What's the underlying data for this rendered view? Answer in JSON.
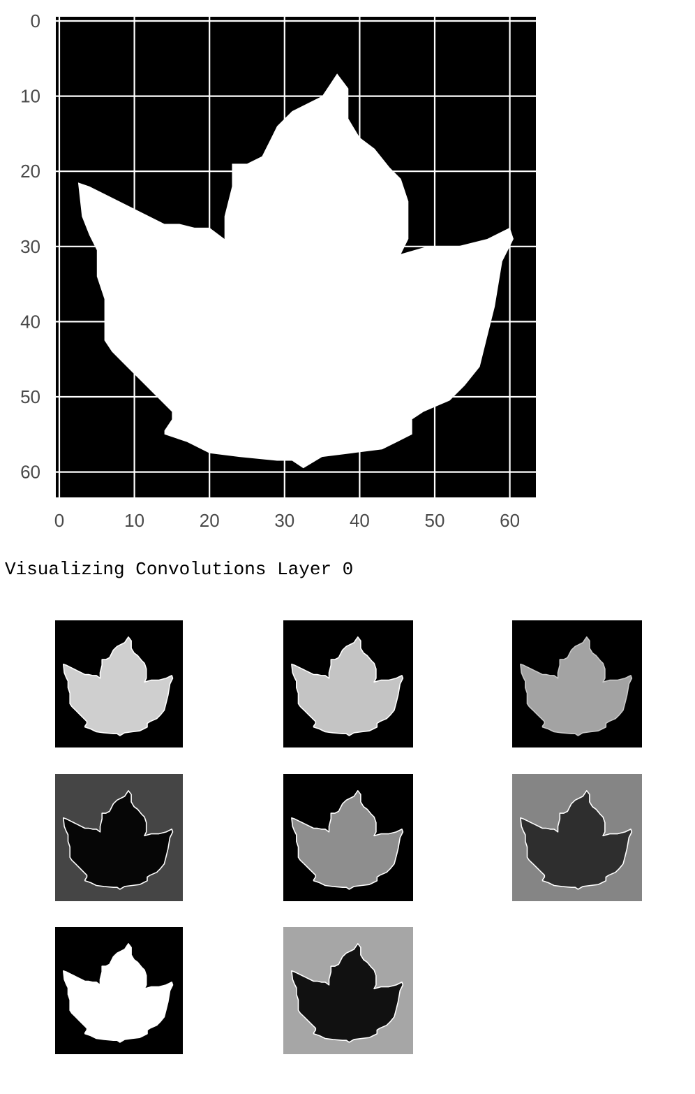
{
  "caption": "Visualizing Convolutions Layer 0",
  "chart_data": {
    "type": "heatmap",
    "title": "",
    "xlabel": "",
    "ylabel": "",
    "xlim": [
      0,
      63
    ],
    "ylim": [
      63,
      0
    ],
    "xticks": [
      "0",
      "10",
      "20",
      "30",
      "40",
      "50",
      "60"
    ],
    "yticks": [
      "0",
      "10",
      "20",
      "30",
      "40",
      "50",
      "60"
    ],
    "grid": true,
    "colormap": "gray",
    "background_value": 0,
    "leaf_value": 1,
    "leaf_outline": [
      [
        37,
        7
      ],
      [
        38.5,
        9
      ],
      [
        38.5,
        13
      ],
      [
        40,
        15.5
      ],
      [
        42,
        17
      ],
      [
        44,
        19.5
      ],
      [
        45.5,
        21
      ],
      [
        46.5,
        24
      ],
      [
        46.5,
        29
      ],
      [
        45.5,
        31
      ],
      [
        49,
        30
      ],
      [
        53,
        30
      ],
      [
        57,
        29
      ],
      [
        60,
        27.5
      ],
      [
        60.5,
        29
      ],
      [
        59,
        32
      ],
      [
        58,
        38
      ],
      [
        57,
        42
      ],
      [
        56,
        46
      ],
      [
        54,
        48.5
      ],
      [
        52,
        50.5
      ],
      [
        48.5,
        52
      ],
      [
        47,
        53
      ],
      [
        47,
        55
      ],
      [
        45,
        56
      ],
      [
        43,
        57
      ],
      [
        39,
        57.5
      ],
      [
        35,
        58
      ],
      [
        32.5,
        59.5
      ],
      [
        31,
        58.5
      ],
      [
        29,
        58.5
      ],
      [
        24,
        58
      ],
      [
        20,
        57.5
      ],
      [
        17,
        56
      ],
      [
        14,
        55
      ],
      [
        14,
        54.5
      ],
      [
        15,
        53
      ],
      [
        15,
        52
      ],
      [
        13,
        50
      ],
      [
        11,
        48
      ],
      [
        9,
        46
      ],
      [
        7,
        44
      ],
      [
        6,
        42.5
      ],
      [
        6,
        37
      ],
      [
        5,
        34
      ],
      [
        5,
        30.5
      ],
      [
        4,
        28.5
      ],
      [
        3,
        26
      ],
      [
        2.5,
        21.5
      ],
      [
        4,
        22
      ],
      [
        6,
        23
      ],
      [
        8,
        24
      ],
      [
        10,
        25
      ],
      [
        12,
        26
      ],
      [
        14,
        27
      ],
      [
        16,
        27
      ],
      [
        18,
        27.5
      ],
      [
        20,
        27.5
      ],
      [
        22,
        29
      ],
      [
        22,
        26
      ],
      [
        23,
        22
      ],
      [
        23,
        19
      ],
      [
        25,
        19
      ],
      [
        27,
        18
      ],
      [
        28,
        16
      ],
      [
        29,
        14
      ],
      [
        31,
        12
      ],
      [
        33,
        11
      ],
      [
        35,
        10
      ],
      [
        36,
        8.5
      ]
    ],
    "feature_maps": [
      {
        "index": 0,
        "background": "#000000",
        "fill": "#cfcfcf",
        "edge": "#ffffff"
      },
      {
        "index": 1,
        "background": "#000000",
        "fill": "#c4c4c4",
        "edge": "#ffffff"
      },
      {
        "index": 2,
        "background": "#000000",
        "fill": "#a3a3a3",
        "edge": "#c8c8c8"
      },
      {
        "index": 3,
        "background": "#454545",
        "fill": "#060606",
        "edge": "#ffffff"
      },
      {
        "index": 4,
        "background": "#000000",
        "fill": "#8e8e8e",
        "edge": "#ffffff"
      },
      {
        "index": 5,
        "background": "#858585",
        "fill": "#2e2e2e",
        "edge": "#ffffff"
      },
      {
        "index": 6,
        "background": "#000000",
        "fill": "#ffffff",
        "edge": "#ffffff"
      },
      {
        "index": 7,
        "background": "#a6a6a6",
        "fill": "#111111",
        "edge": "#ffffff"
      }
    ]
  }
}
